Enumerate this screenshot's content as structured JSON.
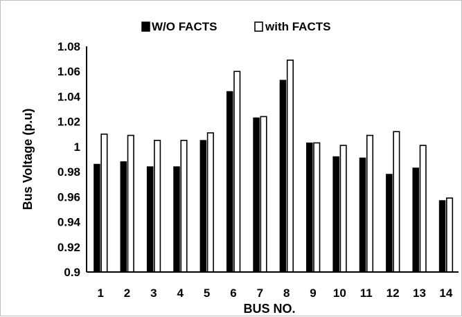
{
  "chart_data": {
    "type": "bar",
    "title": "",
    "xlabel": "BUS NO.",
    "ylabel": "Bus  Voltage (p.u)",
    "ylim": [
      0.9,
      1.08
    ],
    "yticks": [
      "0.9",
      "0.92",
      "0.94",
      "0.96",
      "0.98",
      "1",
      "1.02",
      "1.04",
      "1.06",
      "1.08"
    ],
    "categories": [
      "1",
      "2",
      "3",
      "4",
      "5",
      "6",
      "7",
      "8",
      "9",
      "10",
      "11",
      "12",
      "13",
      "14"
    ],
    "legend_position": "top",
    "grid": false,
    "series": [
      {
        "name": "W/O FACTS",
        "color": "#000000",
        "fill": "solid",
        "values": [
          0.986,
          0.988,
          0.984,
          0.984,
          1.005,
          1.044,
          1.023,
          1.053,
          1.003,
          0.992,
          0.991,
          0.978,
          0.983,
          0.957
        ]
      },
      {
        "name": "with FACTS",
        "color": "#ffffff",
        "fill": "outline",
        "values": [
          1.01,
          1.009,
          1.005,
          1.005,
          1.011,
          1.06,
          1.024,
          1.069,
          1.003,
          1.001,
          1.009,
          1.012,
          1.001,
          0.959
        ]
      }
    ]
  }
}
